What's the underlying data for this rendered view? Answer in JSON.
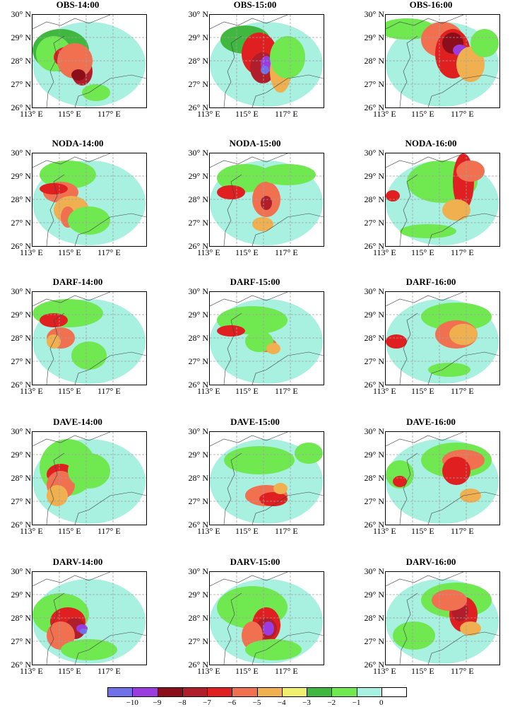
{
  "panels": [
    {
      "title": "OBS-14:00"
    },
    {
      "title": "OBS-15:00"
    },
    {
      "title": "OBS-16:00"
    },
    {
      "title": "NODA-14:00"
    },
    {
      "title": "NODA-15:00"
    },
    {
      "title": "NODA-16:00"
    },
    {
      "title": "DARF-14:00"
    },
    {
      "title": "DARF-15:00"
    },
    {
      "title": "DARF-16:00"
    },
    {
      "title": "DAVE-14:00"
    },
    {
      "title": "DAVE-15:00"
    },
    {
      "title": "DAVE-16:00"
    },
    {
      "title": "DARV-14:00"
    },
    {
      "title": "DARV-15:00"
    },
    {
      "title": "DARV-16:00"
    }
  ],
  "lat_labels": [
    "30° N",
    "29° N",
    "28° N",
    "27° N",
    "26° N"
  ],
  "lon_labels": [
    "113° E",
    "115° E",
    "117° E"
  ],
  "colorbar": {
    "labels": [
      "−10",
      "−9",
      "−8",
      "−7",
      "−6",
      "−5",
      "−4",
      "−3",
      "−2",
      "−1",
      "0"
    ],
    "colors": [
      "#7070e8",
      "#9a3ce0",
      "#8b0e1a",
      "#b01e2c",
      "#e02020",
      "#f07050",
      "#f0b050",
      "#f0f070",
      "#40b840",
      "#70e850",
      "#a8f0e0",
      "#ffffff"
    ]
  },
  "colors": {
    "grid": "#a0a0a0",
    "border": "#404040"
  }
}
